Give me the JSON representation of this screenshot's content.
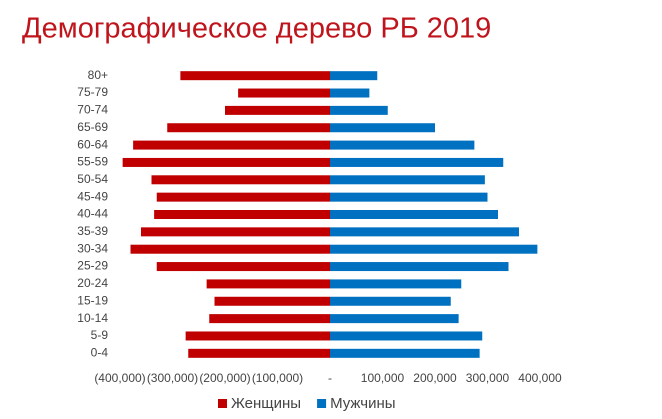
{
  "chart_data": {
    "type": "bar",
    "orientation": "horizontal",
    "title": "Демографическое дерево РБ 2019",
    "categories": [
      "80+",
      "75-79",
      "70-74",
      "65-69",
      "60-64",
      "55-59",
      "50-54",
      "45-49",
      "40-44",
      "35-39",
      "30-34",
      "25-29",
      "20-24",
      "15-19",
      "10-14",
      "5-9",
      "0-4"
    ],
    "series": [
      {
        "name": "Женщины",
        "color": "#c00000",
        "values": [
          -285000,
          -175000,
          -200000,
          -310000,
          -375000,
          -395000,
          -340000,
          -330000,
          -335000,
          -360000,
          -380000,
          -330000,
          -235000,
          -220000,
          -230000,
          -275000,
          -270000
        ]
      },
      {
        "name": "Мужчины",
        "color": "#0070c0",
        "values": [
          90000,
          75000,
          110000,
          200000,
          275000,
          330000,
          295000,
          300000,
          320000,
          360000,
          395000,
          340000,
          250000,
          230000,
          245000,
          290000,
          285000
        ]
      }
    ],
    "xlim": [
      -400000,
      400000
    ],
    "xticks": [
      {
        "value": -400000,
        "label": "(400,000)"
      },
      {
        "value": -300000,
        "label": "(300,000)"
      },
      {
        "value": -200000,
        "label": "(200,000)"
      },
      {
        "value": -100000,
        "label": "(100,000)"
      },
      {
        "value": 0,
        "label": "-"
      },
      {
        "value": 100000,
        "label": "100,000"
      },
      {
        "value": 200000,
        "label": "200,000"
      },
      {
        "value": 300000,
        "label": "300,000"
      },
      {
        "value": 400000,
        "label": "400,000"
      }
    ],
    "grid": false,
    "legend": "bottom"
  }
}
